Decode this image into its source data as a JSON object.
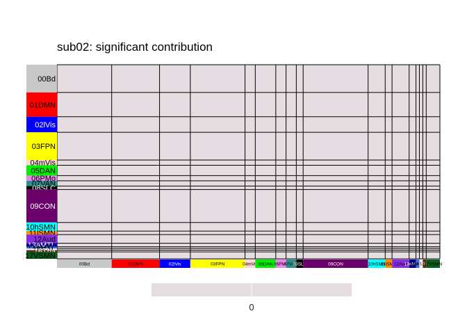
{
  "chart_data": {
    "type": "heatmap",
    "title": "sub02: significant contribution",
    "networks": [
      {
        "label": "00Bd",
        "count": 16,
        "color": "#c8c8c8",
        "text_color": "#000000"
      },
      {
        "label": "01DMN",
        "count": 14,
        "color": "#ff0000",
        "text_color": "#000000"
      },
      {
        "label": "02lVis",
        "count": 9,
        "color": "#0000ff",
        "text_color": "#ffffff"
      },
      {
        "label": "03FPN",
        "count": 16,
        "color": "#ffff00",
        "text_color": "#000000"
      },
      {
        "label": "04mVis",
        "count": 3,
        "color": "#ffd7d7",
        "text_color": "#000000"
      },
      {
        "label": "05DAN",
        "count": 6,
        "color": "#00ee00",
        "text_color": "#000000"
      },
      {
        "label": "06PMo",
        "count": 3,
        "color": "#ee82ee",
        "text_color": "#000000"
      },
      {
        "label": "07VAN",
        "count": 3,
        "color": "#2a8f8a",
        "text_color": "#000000"
      },
      {
        "label": "08SLC",
        "count": 2,
        "color": "#000000",
        "text_color": "#ffffff"
      },
      {
        "label": "09CON",
        "count": 19,
        "color": "#6b006b",
        "text_color": "#ffffff"
      },
      {
        "label": "10hSMN",
        "count": 5,
        "color": "#00ffff",
        "text_color": "#000000"
      },
      {
        "label": "11lSMN",
        "count": 2,
        "color": "#ff8c00",
        "text_color": "#000000"
      },
      {
        "label": "12Aud",
        "count": 5,
        "color": "#8a2be2",
        "text_color": "#000000"
      },
      {
        "label": "13aMTL",
        "count": 2,
        "color": "#00008b",
        "text_color": "#ffffff"
      },
      {
        "label": "14pMTL",
        "count": 1,
        "color": "#4169e1",
        "text_color": "#000000"
      },
      {
        "label": "15SAL",
        "count": 1,
        "color": "#f0f0f0",
        "text_color": "#000000"
      },
      {
        "label": "16Tha",
        "count": 1,
        "color": "#5a2d0c",
        "text_color": "#ffffff"
      },
      {
        "label": "17VSMN",
        "count": 4,
        "color": "#0b5d1e",
        "text_color": "#000000"
      }
    ],
    "values": "all 0",
    "cell_fill": "#e5dde1",
    "grid_line_color": "#000000",
    "legend": {
      "position": "bottom",
      "colorbar_fill": "#e5dde1",
      "ticks": [
        "0"
      ]
    }
  }
}
